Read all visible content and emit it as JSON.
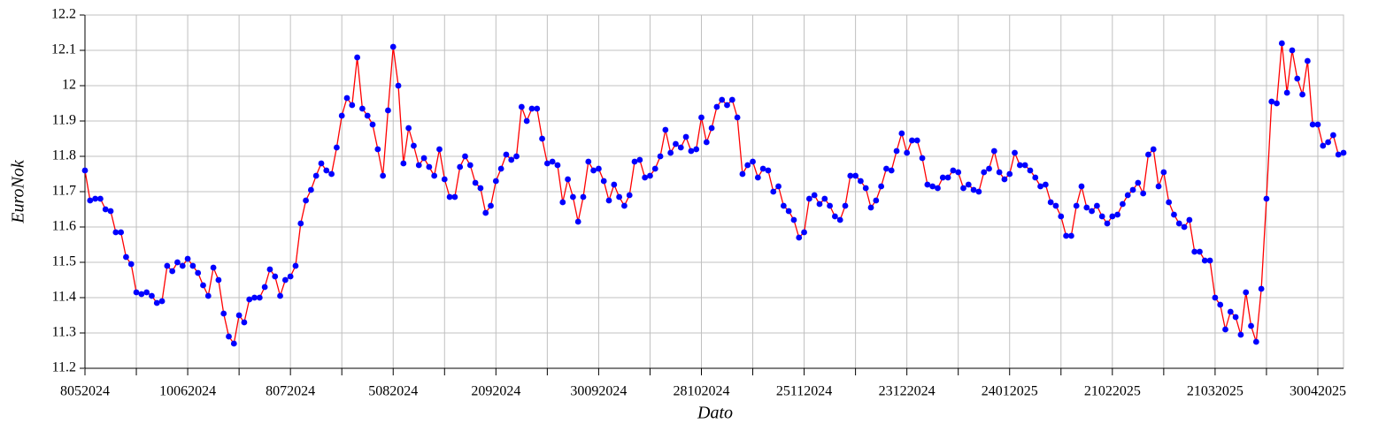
{
  "chart_data": {
    "type": "line",
    "xlabel": "Dato",
    "ylabel": "EuroNok",
    "categories": [
      "8052024",
      null,
      null,
      null,
      null,
      null,
      null,
      null,
      null,
      null,
      null,
      null,
      null,
      null,
      null,
      null,
      null,
      null,
      null,
      null,
      "10062024",
      null,
      null,
      null,
      null,
      null,
      null,
      null,
      null,
      null,
      null,
      null,
      null,
      null,
      null,
      null,
      null,
      null,
      null,
      null,
      "8072024",
      null,
      null,
      null,
      null,
      null,
      null,
      null,
      null,
      null,
      null,
      null,
      null,
      null,
      null,
      null,
      null,
      null,
      null,
      null,
      "5082024",
      null,
      null,
      null,
      null,
      null,
      null,
      null,
      null,
      null,
      null,
      null,
      null,
      null,
      null,
      null,
      null,
      null,
      null,
      null,
      "2092024",
      null,
      null,
      null,
      null,
      null,
      null,
      null,
      null,
      null,
      null,
      null,
      null,
      null,
      null,
      null,
      null,
      null,
      null,
      null,
      "30092024",
      null,
      null,
      null,
      null,
      null,
      null,
      null,
      null,
      null,
      null,
      null,
      null,
      null,
      null,
      null,
      null,
      null,
      null,
      null,
      "28102024",
      null,
      null,
      null,
      null,
      null,
      null,
      null,
      null,
      null,
      null,
      null,
      null,
      null,
      null,
      null,
      null,
      null,
      null,
      null,
      "25112024",
      null,
      null,
      null,
      null,
      null,
      null,
      null,
      null,
      null,
      null,
      null,
      null,
      null,
      null,
      null,
      null,
      null,
      null,
      null,
      "23122024",
      null,
      null,
      null,
      null,
      null,
      null,
      null,
      null,
      null,
      null,
      null,
      null,
      null,
      null,
      null,
      null,
      null,
      null,
      null,
      "24012025",
      null,
      null,
      null,
      null,
      null,
      null,
      null,
      null,
      null,
      null,
      null,
      null,
      null,
      null,
      null,
      null,
      null,
      null,
      null,
      "21022025",
      null,
      null,
      null,
      null,
      null,
      null,
      null,
      null,
      null,
      null,
      null,
      null,
      null,
      null,
      null,
      null,
      null,
      null,
      null,
      "21032025",
      null,
      null,
      null,
      null,
      null,
      null,
      null,
      null,
      null,
      null,
      null,
      null,
      null,
      null,
      null,
      null,
      null,
      null,
      null,
      "30042025",
      null,
      null,
      null,
      null,
      null
    ],
    "series": [
      {
        "color": "#ff0000",
        "marker_color": "#0000ff",
        "values": [
          11.76,
          11.675,
          11.68,
          11.68,
          11.65,
          11.645,
          11.585,
          11.585,
          11.515,
          11.495,
          11.415,
          11.41,
          11.415,
          11.405,
          11.385,
          11.39,
          11.49,
          11.475,
          11.5,
          11.49,
          11.51,
          11.49,
          11.47,
          11.435,
          11.405,
          11.485,
          11.45,
          11.355,
          11.29,
          11.27,
          11.35,
          11.33,
          11.395,
          11.4,
          11.4,
          11.43,
          11.48,
          11.46,
          11.405,
          11.45,
          11.46,
          11.49,
          11.61,
          11.675,
          11.705,
          11.745,
          11.78,
          11.76,
          11.75,
          11.825,
          11.915,
          11.965,
          11.945,
          12.08,
          11.935,
          11.915,
          11.89,
          11.82,
          11.745,
          11.93,
          12.11,
          12.0,
          11.78,
          11.88,
          11.83,
          11.775,
          11.795,
          11.77,
          11.745,
          11.82,
          11.735,
          11.685,
          11.685,
          11.77,
          11.8,
          11.775,
          11.725,
          11.71,
          11.64,
          11.66,
          11.73,
          11.765,
          11.805,
          11.79,
          11.8,
          11.94,
          11.9,
          11.935,
          11.935,
          11.85,
          11.78,
          11.785,
          11.775,
          11.67,
          11.735,
          11.685,
          11.615,
          11.685,
          11.785,
          11.76,
          11.765,
          11.73,
          11.675,
          11.72,
          11.685,
          11.66,
          11.69,
          11.785,
          11.79,
          11.74,
          11.745,
          11.765,
          11.8,
          11.875,
          11.81,
          11.835,
          11.825,
          11.855,
          11.815,
          11.82,
          11.91,
          11.84,
          11.88,
          11.94,
          11.96,
          11.945,
          11.96,
          11.91,
          11.75,
          11.775,
          11.785,
          11.74,
          11.765,
          11.76,
          11.7,
          11.715,
          11.66,
          11.645,
          11.62,
          11.57,
          11.585,
          11.68,
          11.69,
          11.665,
          11.68,
          11.66,
          11.63,
          11.62,
          11.66,
          11.745,
          11.745,
          11.73,
          11.71,
          11.655,
          11.675,
          11.715,
          11.765,
          11.76,
          11.815,
          11.865,
          11.81,
          11.845,
          11.845,
          11.795,
          11.72,
          11.715,
          11.71,
          11.74,
          11.74,
          11.76,
          11.755,
          11.71,
          11.72,
          11.705,
          11.7,
          11.755,
          11.765,
          11.815,
          11.755,
          11.735,
          11.75,
          11.81,
          11.775,
          11.775,
          11.76,
          11.74,
          11.715,
          11.72,
          11.67,
          11.66,
          11.63,
          11.575,
          11.575,
          11.66,
          11.715,
          11.655,
          11.645,
          11.66,
          11.63,
          11.61,
          11.63,
          11.635,
          11.665,
          11.69,
          11.705,
          11.725,
          11.695,
          11.805,
          11.82,
          11.715,
          11.755,
          11.67,
          11.635,
          11.61,
          11.6,
          11.62,
          11.53,
          11.53,
          11.505,
          11.505,
          11.4,
          11.38,
          11.31,
          11.36,
          11.345,
          11.295,
          11.415,
          11.32,
          11.275,
          11.425,
          11.68,
          11.955,
          11.95,
          12.12,
          11.98,
          12.1,
          12.02,
          11.975,
          12.07,
          11.89,
          11.89,
          11.83,
          11.84,
          11.86,
          11.805,
          11.81
        ]
      }
    ],
    "ylim": [
      11.2,
      12.2
    ],
    "yticks": [
      11.2,
      11.3,
      11.4,
      11.5,
      11.6,
      11.7,
      11.8,
      11.9,
      12,
      12.1,
      12.2
    ],
    "grid": true
  }
}
